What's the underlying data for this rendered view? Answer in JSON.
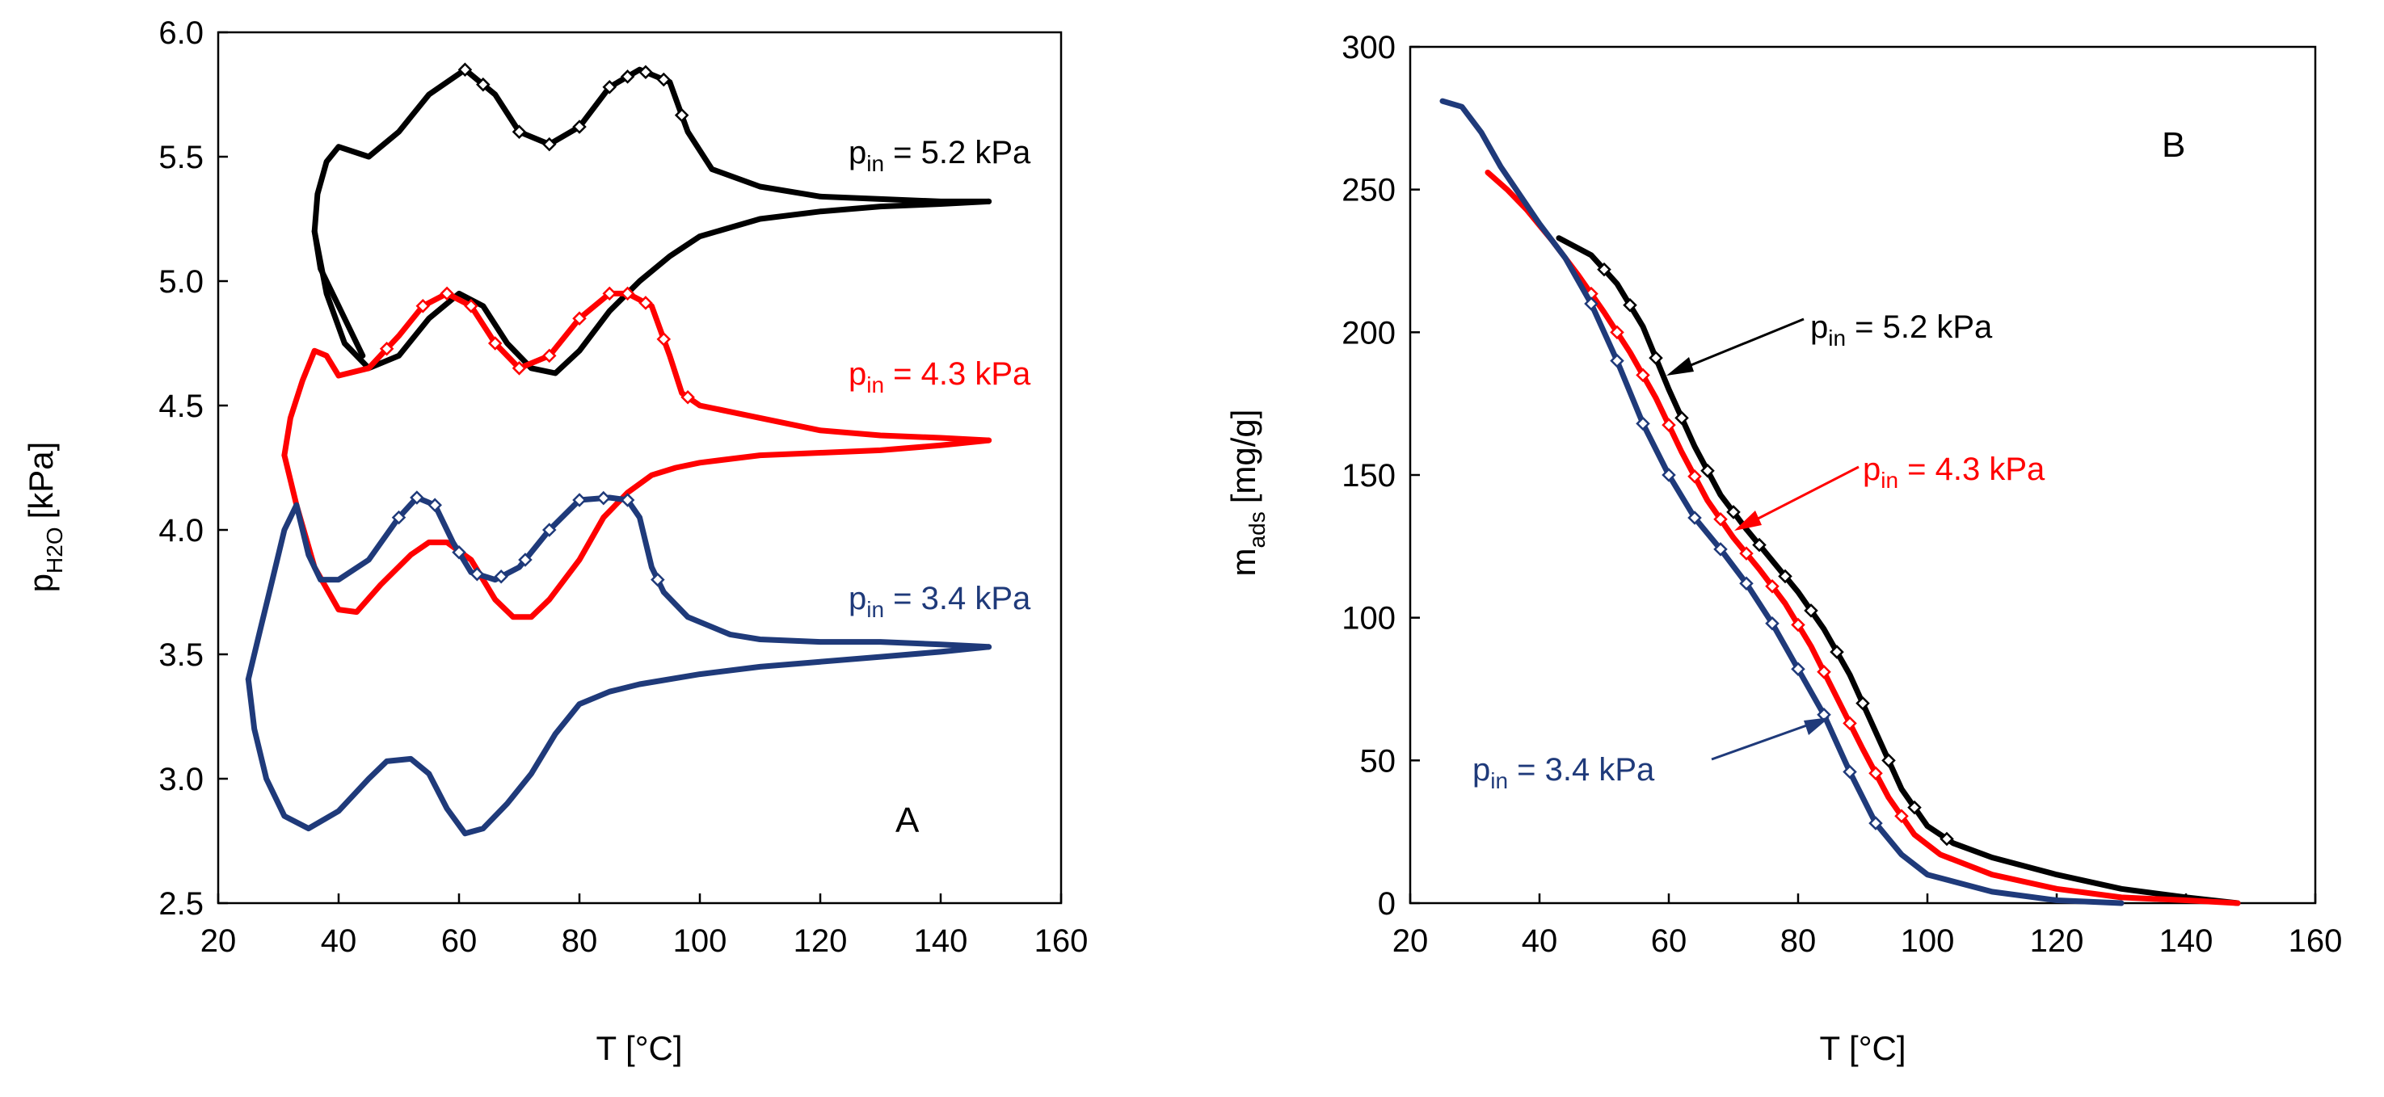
{
  "chart_data": [
    {
      "panel": "A",
      "type": "line",
      "xlabel": "T [°C]",
      "ylabel_base": "p",
      "ylabel_sub": "H2O",
      "ylabel_unit": "[kPa]",
      "xlim": [
        20,
        160
      ],
      "ylim": [
        2.5,
        6.0
      ],
      "xticks": [
        20,
        40,
        60,
        80,
        100,
        120,
        140,
        160
      ],
      "yticks": [
        "2.5",
        "3.0",
        "3.5",
        "4.0",
        "4.5",
        "5.0",
        "5.5",
        "6.0"
      ],
      "grid": false,
      "series": [
        {
          "label_base": "p",
          "label_sub": "in",
          "label_rest": " = 5.2 kPa",
          "color": "#000000",
          "loop_upper": {
            "x": [
              44,
              40,
              37,
              36,
              36.5,
              38,
              40,
              45,
              50,
              55,
              61,
              66,
              70,
              75,
              80,
              85,
              90,
              95,
              98,
              102,
              110,
              120,
              130,
              140,
              148
            ],
            "y": [
              4.7,
              4.9,
              5.05,
              5.2,
              5.35,
              5.48,
              5.54,
              5.5,
              5.6,
              5.75,
              5.85,
              5.75,
              5.6,
              5.55,
              5.62,
              5.78,
              5.85,
              5.8,
              5.6,
              5.45,
              5.38,
              5.34,
              5.33,
              5.32,
              5.32
            ]
          },
          "loop_lower": {
            "x": [
              36,
              38,
              41,
              45,
              50,
              55,
              60,
              64,
              68,
              72,
              76,
              80,
              85,
              90,
              95,
              100,
              110,
              120,
              130,
              140,
              148
            ],
            "y": [
              5.2,
              4.95,
              4.75,
              4.65,
              4.7,
              4.85,
              4.95,
              4.9,
              4.75,
              4.65,
              4.63,
              4.72,
              4.88,
              5.0,
              5.1,
              5.18,
              5.25,
              5.28,
              5.3,
              5.31,
              5.32
            ]
          },
          "marker_x": [
            61,
            64,
            70,
            75,
            80,
            85,
            88,
            91,
            94,
            97
          ]
        },
        {
          "label_base": "p",
          "label_sub": "in",
          "label_rest": " = 4.3 kPa",
          "color": "#ff0000",
          "loop_upper": {
            "x": [
              31,
              32,
              34,
              36,
              38,
              40,
              45,
              50,
              54,
              58,
              62,
              66,
              70,
              75,
              80,
              85,
              88,
              92,
              95,
              97,
              100,
              110,
              120,
              130,
              140,
              148
            ],
            "y": [
              4.3,
              4.45,
              4.6,
              4.72,
              4.7,
              4.62,
              4.65,
              4.78,
              4.9,
              4.95,
              4.9,
              4.75,
              4.65,
              4.7,
              4.85,
              4.95,
              4.95,
              4.9,
              4.7,
              4.55,
              4.5,
              4.45,
              4.4,
              4.38,
              4.37,
              4.36
            ]
          },
          "loop_lower": {
            "x": [
              31,
              33,
              36,
              40,
              43,
              47,
              52,
              55,
              58,
              62,
              66,
              69,
              72,
              75,
              80,
              84,
              88,
              92,
              96,
              100,
              110,
              120,
              130,
              140,
              148
            ],
            "y": [
              4.3,
              4.1,
              3.85,
              3.68,
              3.67,
              3.78,
              3.9,
              3.95,
              3.95,
              3.88,
              3.72,
              3.65,
              3.65,
              3.72,
              3.88,
              4.05,
              4.15,
              4.22,
              4.25,
              4.27,
              4.3,
              4.31,
              4.32,
              4.34,
              4.36
            ]
          },
          "marker_x": [
            48,
            54,
            58,
            62,
            66,
            70,
            75,
            80,
            85,
            88,
            91,
            94,
            98
          ]
        },
        {
          "label_base": "p",
          "label_sub": "in",
          "label_rest": " = 3.4 kPa",
          "color": "#1f3a7a",
          "loop_upper": {
            "x": [
              25,
              27,
              29,
              31,
              33,
              35,
              37,
              40,
              45,
              50,
              53,
              56,
              59,
              62,
              66,
              70,
              75,
              80,
              85,
              88,
              90,
              92,
              94,
              98,
              105,
              110,
              120,
              130,
              140,
              148
            ],
            "y": [
              3.4,
              3.6,
              3.8,
              4.0,
              4.1,
              3.9,
              3.8,
              3.8,
              3.88,
              4.05,
              4.13,
              4.1,
              3.95,
              3.83,
              3.8,
              3.85,
              4.0,
              4.12,
              4.13,
              4.12,
              4.05,
              3.85,
              3.75,
              3.65,
              3.58,
              3.56,
              3.55,
              3.55,
              3.54,
              3.53
            ]
          },
          "loop_lower": {
            "x": [
              25,
              26,
              28,
              31,
              35,
              40,
              45,
              48,
              52,
              55,
              58,
              61,
              64,
              68,
              72,
              76,
              80,
              85,
              90,
              100,
              110,
              120,
              130,
              140,
              148
            ],
            "y": [
              3.4,
              3.2,
              3.0,
              2.85,
              2.8,
              2.87,
              3.0,
              3.07,
              3.08,
              3.02,
              2.88,
              2.78,
              2.8,
              2.9,
              3.02,
              3.18,
              3.3,
              3.35,
              3.38,
              3.42,
              3.45,
              3.47,
              3.49,
              3.51,
              3.53
            ]
          },
          "marker_x": [
            50,
            53,
            56,
            60,
            63,
            67,
            71,
            75,
            80,
            84,
            88,
            93
          ]
        }
      ],
      "panel_letter": "A"
    },
    {
      "panel": "B",
      "type": "line",
      "xlabel": "T [°C]",
      "ylabel_base": "m",
      "ylabel_sub": "ads",
      "ylabel_unit": "[mg/g]",
      "xlim": [
        20,
        160
      ],
      "ylim": [
        0,
        300
      ],
      "xticks": [
        20,
        40,
        60,
        80,
        100,
        120,
        140,
        160
      ],
      "yticks": [
        "0",
        "50",
        "100",
        "150",
        "200",
        "250",
        "300"
      ],
      "grid": false,
      "series": [
        {
          "label_base": "p",
          "label_sub": "in",
          "label_rest": " = 5.2 kPa",
          "color": "#000000",
          "x": [
            43,
            48,
            52,
            56,
            60,
            64,
            68,
            72,
            76,
            80,
            84,
            88,
            92,
            96,
            100,
            104,
            110,
            120,
            130,
            140,
            148
          ],
          "y": [
            233,
            227,
            217,
            202,
            180,
            160,
            143,
            131,
            120,
            109,
            96,
            80,
            60,
            40,
            27,
            21,
            16,
            10,
            5,
            2,
            0
          ],
          "marker_x": [
            50,
            54,
            58,
            62,
            66,
            70,
            74,
            78,
            82,
            86,
            90,
            94,
            98,
            103
          ]
        },
        {
          "label_base": "p",
          "label_sub": "in",
          "label_rest": " = 4.3 kPa",
          "color": "#ff0000",
          "x": [
            32,
            35,
            38,
            42,
            46,
            50,
            54,
            58,
            62,
            66,
            70,
            74,
            78,
            82,
            86,
            90,
            94,
            98,
            102,
            110,
            120,
            130,
            140,
            148
          ],
          "y": [
            256,
            250,
            243,
            232,
            220,
            207,
            193,
            177,
            158,
            141,
            128,
            117,
            105,
            90,
            72,
            54,
            37,
            24,
            17,
            10,
            5,
            2,
            1,
            0
          ],
          "marker_x": [
            48,
            52,
            56,
            60,
            64,
            68,
            72,
            76,
            80,
            84,
            88,
            92,
            96
          ]
        },
        {
          "label_base": "p",
          "label_sub": "in",
          "label_rest": " = 3.4 kPa",
          "color": "#1f3a7a",
          "x": [
            25,
            28,
            31,
            34,
            37,
            40,
            44,
            48,
            52,
            56,
            60,
            64,
            68,
            72,
            76,
            80,
            84,
            88,
            92,
            96,
            100,
            110,
            120,
            130
          ],
          "y": [
            281,
            279,
            270,
            258,
            248,
            238,
            226,
            210,
            190,
            168,
            150,
            135,
            124,
            112,
            98,
            82,
            66,
            46,
            28,
            17,
            10,
            4,
            1,
            0
          ],
          "marker_x": [
            48,
            52,
            56,
            60,
            64,
            68,
            72,
            76,
            80,
            84,
            88,
            92
          ]
        }
      ],
      "panel_letter": "B"
    }
  ]
}
